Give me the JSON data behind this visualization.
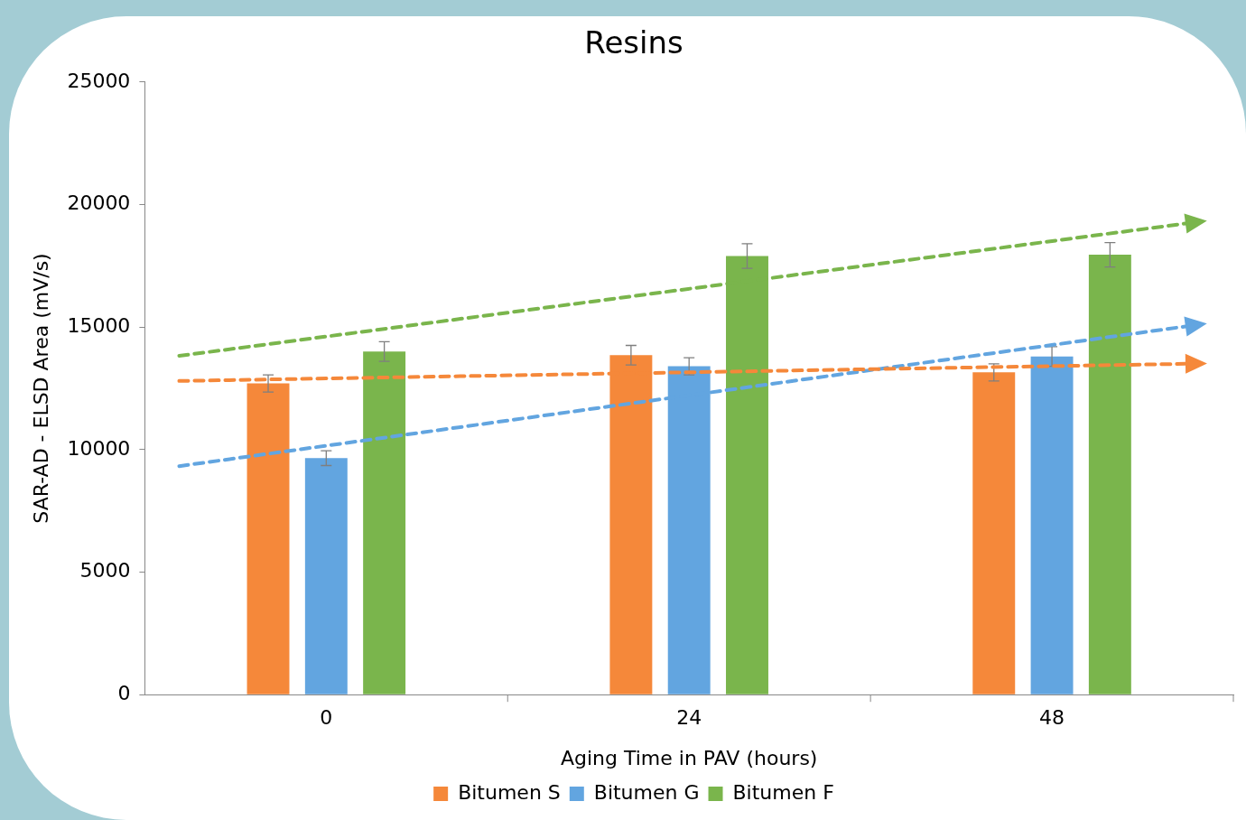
{
  "chart_data": {
    "type": "bar",
    "title": "Resins",
    "xlabel": "Aging Time in PAV (hours)",
    "ylabel": "SAR-AD - ELSD Area (mV/s)",
    "x": [
      0,
      24,
      48
    ],
    "xlim": [
      -12,
      60
    ],
    "xticks": [
      0,
      {
        "value": 12,
        "label": null
      },
      24,
      {
        "value": 36,
        "label": null
      },
      48,
      {
        "value": 60,
        "label": null
      }
    ],
    "ylim": [
      0,
      25000
    ],
    "yticks": [
      0,
      5000,
      10000,
      15000,
      20000,
      25000
    ],
    "grid": false,
    "legend": "bottom",
    "series": [
      {
        "name": "Bitumen S",
        "color": "#f5883a",
        "values": [
          12700,
          13850,
          13150
        ],
        "errors": [
          350,
          400,
          350
        ]
      },
      {
        "name": "Bitumen G",
        "color": "#62a5e0",
        "values": [
          9650,
          13400,
          13800
        ],
        "errors": [
          300,
          350,
          400
        ]
      },
      {
        "name": "Bitumen F",
        "color": "#7ab54c",
        "values": [
          14000,
          17900,
          17950
        ],
        "errors": [
          400,
          500,
          500
        ]
      }
    ]
  }
}
